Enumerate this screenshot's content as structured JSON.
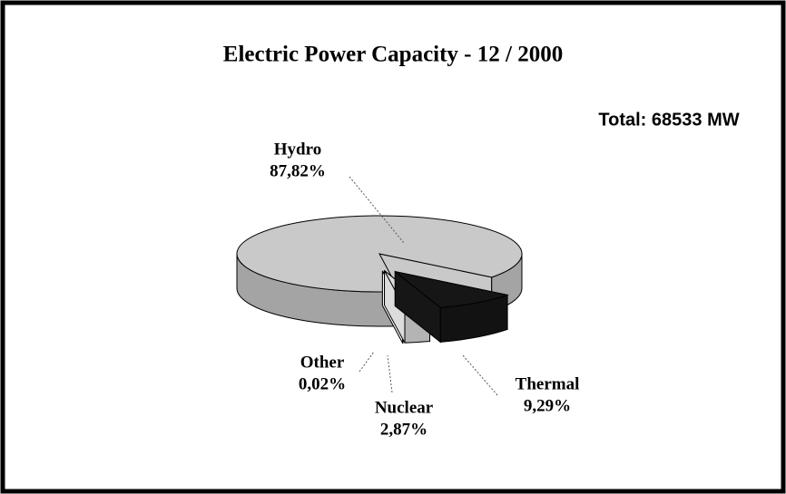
{
  "chart_data": {
    "type": "pie3d",
    "title": "Electric Power Capacity - 12 / 2000",
    "annotation": "Total: 68533 MW",
    "categories": [
      "Hydro",
      "Thermal",
      "Nuclear",
      "Other"
    ],
    "values": [
      87.82,
      9.29,
      2.87,
      0.02
    ],
    "value_labels": [
      "87,82%",
      "9,29%",
      "2,87%",
      "0,02%"
    ],
    "colors": [
      "#c9c9c9",
      "#161616",
      "#dcdcdc",
      "#ffffff"
    ]
  }
}
